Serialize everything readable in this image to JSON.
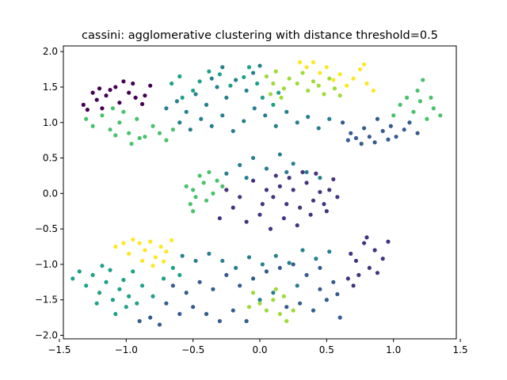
{
  "chart_data": {
    "type": "scatter",
    "title": "cassini: agglomerative clustering with distance threshold=0.5",
    "xlabel": "",
    "ylabel": "",
    "xlim": [
      -1.47,
      1.47
    ],
    "ylim": [
      -2.05,
      2.08
    ],
    "xticks": [
      -1.5,
      -1.0,
      -0.5,
      0.0,
      0.5,
      1.0,
      1.5
    ],
    "xtick_labels": [
      "−1.5",
      "−1.0",
      "−0.5",
      "0.0",
      "0.5",
      "1.0",
      "1.5"
    ],
    "yticks": [
      -2.0,
      -1.5,
      -1.0,
      -0.5,
      0.0,
      0.5,
      1.0,
      1.5,
      2.0
    ],
    "ytick_labels": [
      "−2.0",
      "−1.5",
      "−1.0",
      "−0.5",
      "0.0",
      "0.5",
      "1.0",
      "1.5",
      "2.0"
    ],
    "grid": false,
    "legend": "none",
    "series": [
      {
        "color": "#440154",
        "points": [
          [
            -1.32,
            1.25
          ],
          [
            -1.29,
            1.18
          ],
          [
            -1.22,
            1.32
          ],
          [
            -1.18,
            1.2
          ],
          [
            -1.12,
            1.46
          ],
          [
            -1.08,
            1.5
          ],
          [
            -1.02,
            1.58
          ],
          [
            -0.98,
            1.42
          ],
          [
            -0.93,
            1.35
          ],
          [
            -0.88,
            1.26
          ],
          [
            -0.86,
            1.38
          ],
          [
            -0.82,
            1.52
          ],
          [
            -1.25,
            1.42
          ],
          [
            -1.15,
            1.38
          ],
          [
            -1.05,
            1.28
          ],
          [
            -0.95,
            1.55
          ],
          [
            -1.2,
            1.48
          ]
        ]
      },
      {
        "color": "#46337e",
        "points": [
          [
            0.05,
            0.05
          ],
          [
            0.1,
            -0.05
          ],
          [
            0.15,
            0.1
          ],
          [
            0.2,
            -0.15
          ],
          [
            0.25,
            0.05
          ],
          [
            0.3,
            -0.2
          ],
          [
            0.35,
            0.15
          ],
          [
            0.4,
            -0.1
          ],
          [
            0.45,
            0.02
          ],
          [
            0.5,
            -0.25
          ],
          [
            0.55,
            0.2
          ],
          [
            -0.15,
            -0.05
          ],
          [
            -0.2,
            -0.2
          ],
          [
            -0.25,
            0.05
          ],
          [
            -0.3,
            -0.35
          ],
          [
            -0.1,
            -0.4
          ],
          [
            0.0,
            -0.3
          ],
          [
            0.08,
            -0.5
          ],
          [
            0.18,
            -0.35
          ],
          [
            0.28,
            -0.45
          ],
          [
            0.38,
            -0.3
          ],
          [
            0.48,
            -0.15
          ],
          [
            0.12,
            0.25
          ],
          [
            0.22,
            0.22
          ],
          [
            0.32,
            0.3
          ],
          [
            0.42,
            0.28
          ],
          [
            0.52,
            0.05
          ],
          [
            0.58,
            -0.05
          ],
          [
            -0.05,
            0.18
          ],
          [
            0.02,
            -0.15
          ],
          [
            0.68,
            -0.85
          ],
          [
            0.72,
            -0.95
          ],
          [
            0.78,
            -0.7
          ],
          [
            0.82,
            -1.05
          ],
          [
            0.86,
            -0.8
          ],
          [
            0.92,
            -0.92
          ],
          [
            0.66,
            -1.2
          ],
          [
            0.74,
            -1.15
          ],
          [
            0.88,
            -1.12
          ],
          [
            0.96,
            -0.68
          ],
          [
            0.8,
            -0.62
          ],
          [
            0.7,
            -1.3
          ]
        ]
      },
      {
        "color": "#365c8d",
        "points": [
          [
            0.62,
            1.0
          ],
          [
            0.68,
            0.85
          ],
          [
            0.72,
            0.78
          ],
          [
            0.78,
            0.92
          ],
          [
            0.82,
            0.8
          ],
          [
            0.88,
            1.05
          ],
          [
            0.92,
            0.88
          ],
          [
            0.98,
            0.95
          ],
          [
            1.02,
            0.8
          ],
          [
            1.08,
            0.9
          ],
          [
            1.12,
            1.0
          ],
          [
            1.18,
            0.85
          ],
          [
            0.66,
            0.75
          ],
          [
            0.76,
            0.7
          ],
          [
            0.86,
            0.72
          ],
          [
            0.96,
            0.76
          ],
          [
            -0.9,
            -1.8
          ],
          [
            -0.82,
            -1.75
          ],
          [
            -0.75,
            -1.85
          ],
          [
            -0.6,
            -1.7
          ],
          [
            -0.5,
            -1.6
          ],
          [
            -0.4,
            -1.7
          ],
          [
            -0.3,
            -1.8
          ],
          [
            -0.2,
            -1.65
          ],
          [
            -0.55,
            -1.4
          ],
          [
            -0.45,
            -1.25
          ],
          [
            -0.35,
            -1.35
          ],
          [
            -0.25,
            -1.15
          ],
          [
            -0.15,
            -1.3
          ],
          [
            -0.05,
            -1.2
          ],
          [
            0.05,
            -1.1
          ],
          [
            0.15,
            -1.05
          ],
          [
            0.25,
            -1.0
          ],
          [
            0.35,
            -1.15
          ],
          [
            0.45,
            -1.05
          ],
          [
            0.55,
            -1.25
          ],
          [
            0.3,
            -1.55
          ],
          [
            0.4,
            -1.65
          ],
          [
            0.5,
            -1.5
          ],
          [
            0.6,
            -1.75
          ],
          [
            -0.65,
            -1.3
          ],
          [
            -0.7,
            -1.55
          ],
          [
            -0.1,
            -1.8
          ],
          [
            0.2,
            -1.6
          ],
          [
            0.45,
            -1.35
          ],
          [
            0.58,
            -1.42
          ]
        ]
      },
      {
        "color": "#277f8e",
        "points": [
          [
            -0.7,
            1.2
          ],
          [
            -0.62,
            1.3
          ],
          [
            -0.55,
            1.15
          ],
          [
            -0.48,
            1.4
          ],
          [
            -0.4,
            1.25
          ],
          [
            -0.32,
            1.5
          ],
          [
            -0.25,
            1.35
          ],
          [
            -0.18,
            1.6
          ],
          [
            -0.1,
            1.45
          ],
          [
            -0.05,
            1.7
          ],
          [
            0.0,
            1.8
          ],
          [
            -0.28,
            1.78
          ],
          [
            -0.36,
            1.62
          ],
          [
            -0.6,
            1.0
          ],
          [
            -0.52,
            0.9
          ],
          [
            -0.44,
            1.05
          ],
          [
            -0.36,
            0.95
          ],
          [
            -0.28,
            1.1
          ],
          [
            -0.2,
            0.88
          ],
          [
            -0.12,
            1.02
          ],
          [
            -0.04,
            1.2
          ],
          [
            0.04,
            1.1
          ],
          [
            0.12,
            0.95
          ],
          [
            0.2,
            1.15
          ],
          [
            0.28,
            1.0
          ],
          [
            0.36,
            1.08
          ],
          [
            0.44,
            0.92
          ],
          [
            0.52,
            1.05
          ],
          [
            -0.15,
            0.4
          ],
          [
            -0.05,
            0.5
          ],
          [
            0.05,
            0.35
          ],
          [
            0.15,
            0.55
          ],
          [
            0.25,
            0.42
          ],
          [
            0.35,
            0.3
          ],
          [
            0.45,
            0.22
          ],
          [
            -0.25,
            0.28
          ],
          [
            -0.1,
            0.22
          ],
          [
            0.2,
            0.3
          ],
          [
            -0.38,
            -0.85
          ],
          [
            -0.28,
            -0.95
          ],
          [
            -0.18,
            -1.05
          ],
          [
            -0.08,
            -0.9
          ],
          [
            0.02,
            -1.0
          ],
          [
            0.12,
            -0.88
          ],
          [
            0.22,
            -0.98
          ],
          [
            0.32,
            -0.8
          ],
          [
            0.42,
            -0.92
          ],
          [
            0.52,
            -0.82
          ],
          [
            -0.48,
            -0.95
          ],
          [
            -0.58,
            -0.88
          ],
          [
            0.1,
            -1.4
          ],
          [
            0.0,
            -1.5
          ],
          [
            0.28,
            -1.3
          ]
        ]
      },
      {
        "color": "#1fa187",
        "points": [
          [
            -1.4,
            -1.2
          ],
          [
            -1.35,
            -1.1
          ],
          [
            -1.3,
            -1.3
          ],
          [
            -1.25,
            -1.15
          ],
          [
            -1.2,
            -1.4
          ],
          [
            -1.15,
            -1.25
          ],
          [
            -1.1,
            -1.5
          ],
          [
            -1.05,
            -1.35
          ],
          [
            -1.0,
            -1.6
          ],
          [
            -1.08,
            -1.7
          ],
          [
            -0.98,
            -1.45
          ],
          [
            -0.92,
            -1.55
          ],
          [
            -0.88,
            -1.3
          ],
          [
            -0.8,
            -1.45
          ],
          [
            -0.72,
            -1.2
          ],
          [
            -0.65,
            -1.05
          ],
          [
            -0.6,
            -1.15
          ],
          [
            -0.95,
            -1.1
          ],
          [
            -1.02,
            -1.22
          ],
          [
            -1.12,
            -1.08
          ],
          [
            -1.22,
            -1.55
          ],
          [
            -1.18,
            -1.02
          ],
          [
            -0.58,
            1.35
          ],
          [
            -0.5,
            1.45
          ],
          [
            -0.45,
            1.58
          ],
          [
            -0.38,
            1.72
          ],
          [
            -0.3,
            1.68
          ],
          [
            -0.22,
            1.52
          ],
          [
            -0.12,
            1.64
          ],
          [
            -0.08,
            1.78
          ],
          [
            -0.02,
            1.55
          ],
          [
            0.02,
            1.35
          ],
          [
            0.1,
            1.25
          ],
          [
            0.14,
            1.42
          ],
          [
            -0.66,
            1.55
          ],
          [
            -0.6,
            1.65
          ]
        ]
      },
      {
        "color": "#4ac16d",
        "points": [
          [
            -0.55,
            0.1
          ],
          [
            -0.5,
            0.05
          ],
          [
            -0.48,
            -0.05
          ],
          [
            -0.42,
            0.15
          ],
          [
            -0.4,
            -0.1
          ],
          [
            -0.35,
            0.0
          ],
          [
            -0.32,
            0.18
          ],
          [
            -0.45,
            0.25
          ],
          [
            -0.52,
            -0.15
          ],
          [
            -0.38,
            0.3
          ],
          [
            -0.28,
            0.1
          ],
          [
            -0.5,
            -0.25
          ],
          [
            -1.3,
            1.05
          ],
          [
            -1.25,
            0.95
          ],
          [
            -1.18,
            1.1
          ],
          [
            -1.12,
            0.9
          ],
          [
            -1.05,
            1.0
          ],
          [
            -0.98,
            0.85
          ],
          [
            -0.92,
            1.05
          ],
          [
            -0.86,
            0.8
          ],
          [
            -0.8,
            0.95
          ],
          [
            -0.75,
            0.85
          ],
          [
            -0.7,
            0.75
          ],
          [
            -0.65,
            0.9
          ],
          [
            -1.1,
            1.2
          ],
          [
            -1.02,
            1.15
          ],
          [
            -0.96,
            0.7
          ],
          [
            -0.9,
            0.78
          ],
          [
            -1.08,
            0.82
          ],
          [
            1.0,
            1.1
          ],
          [
            1.05,
            1.25
          ],
          [
            1.1,
            1.35
          ],
          [
            1.15,
            1.15
          ],
          [
            1.2,
            1.3
          ],
          [
            1.25,
            1.05
          ],
          [
            1.3,
            1.2
          ],
          [
            1.35,
            1.1
          ],
          [
            1.28,
            1.35
          ],
          [
            1.18,
            1.45
          ],
          [
            1.22,
            1.6
          ]
        ]
      },
      {
        "color": "#a0da39",
        "points": [
          [
            0.05,
            1.65
          ],
          [
            0.1,
            1.55
          ],
          [
            0.12,
            1.72
          ],
          [
            0.18,
            1.48
          ],
          [
            0.22,
            1.62
          ],
          [
            0.28,
            1.55
          ],
          [
            0.32,
            1.7
          ],
          [
            0.36,
            1.45
          ],
          [
            0.4,
            1.58
          ],
          [
            0.44,
            1.52
          ],
          [
            0.48,
            1.4
          ],
          [
            0.52,
            1.62
          ],
          [
            0.56,
            1.48
          ],
          [
            0.6,
            1.38
          ],
          [
            0.08,
            1.4
          ],
          [
            0.16,
            1.35
          ],
          [
            -0.05,
            -1.4
          ],
          [
            0.0,
            -1.55
          ],
          [
            0.05,
            -1.65
          ],
          [
            0.1,
            -1.5
          ],
          [
            0.15,
            -1.7
          ],
          [
            0.2,
            -1.8
          ],
          [
            0.25,
            -1.65
          ],
          [
            -0.08,
            -1.6
          ],
          [
            0.12,
            -1.35
          ],
          [
            0.18,
            -1.45
          ]
        ]
      },
      {
        "color": "#fde725",
        "points": [
          [
            -1.08,
            -0.75
          ],
          [
            -1.02,
            -0.7
          ],
          [
            -0.98,
            -0.85
          ],
          [
            -0.95,
            -0.65
          ],
          [
            -0.9,
            -0.7
          ],
          [
            -0.86,
            -0.8
          ],
          [
            -0.82,
            -0.68
          ],
          [
            -0.78,
            -0.9
          ],
          [
            -0.74,
            -0.75
          ],
          [
            -0.7,
            -0.82
          ],
          [
            -0.66,
            -0.66
          ],
          [
            -0.88,
            -0.95
          ],
          [
            -0.8,
            -1.02
          ],
          [
            -0.72,
            -0.96
          ],
          [
            0.3,
            1.85
          ],
          [
            0.35,
            1.78
          ],
          [
            0.4,
            1.85
          ],
          [
            0.45,
            1.7
          ],
          [
            0.5,
            1.78
          ],
          [
            0.55,
            1.6
          ],
          [
            0.6,
            1.68
          ],
          [
            0.65,
            1.52
          ],
          [
            0.7,
            1.62
          ],
          [
            0.75,
            1.75
          ],
          [
            0.8,
            1.55
          ],
          [
            0.85,
            1.45
          ],
          [
            0.78,
            1.82
          ]
        ]
      }
    ]
  }
}
